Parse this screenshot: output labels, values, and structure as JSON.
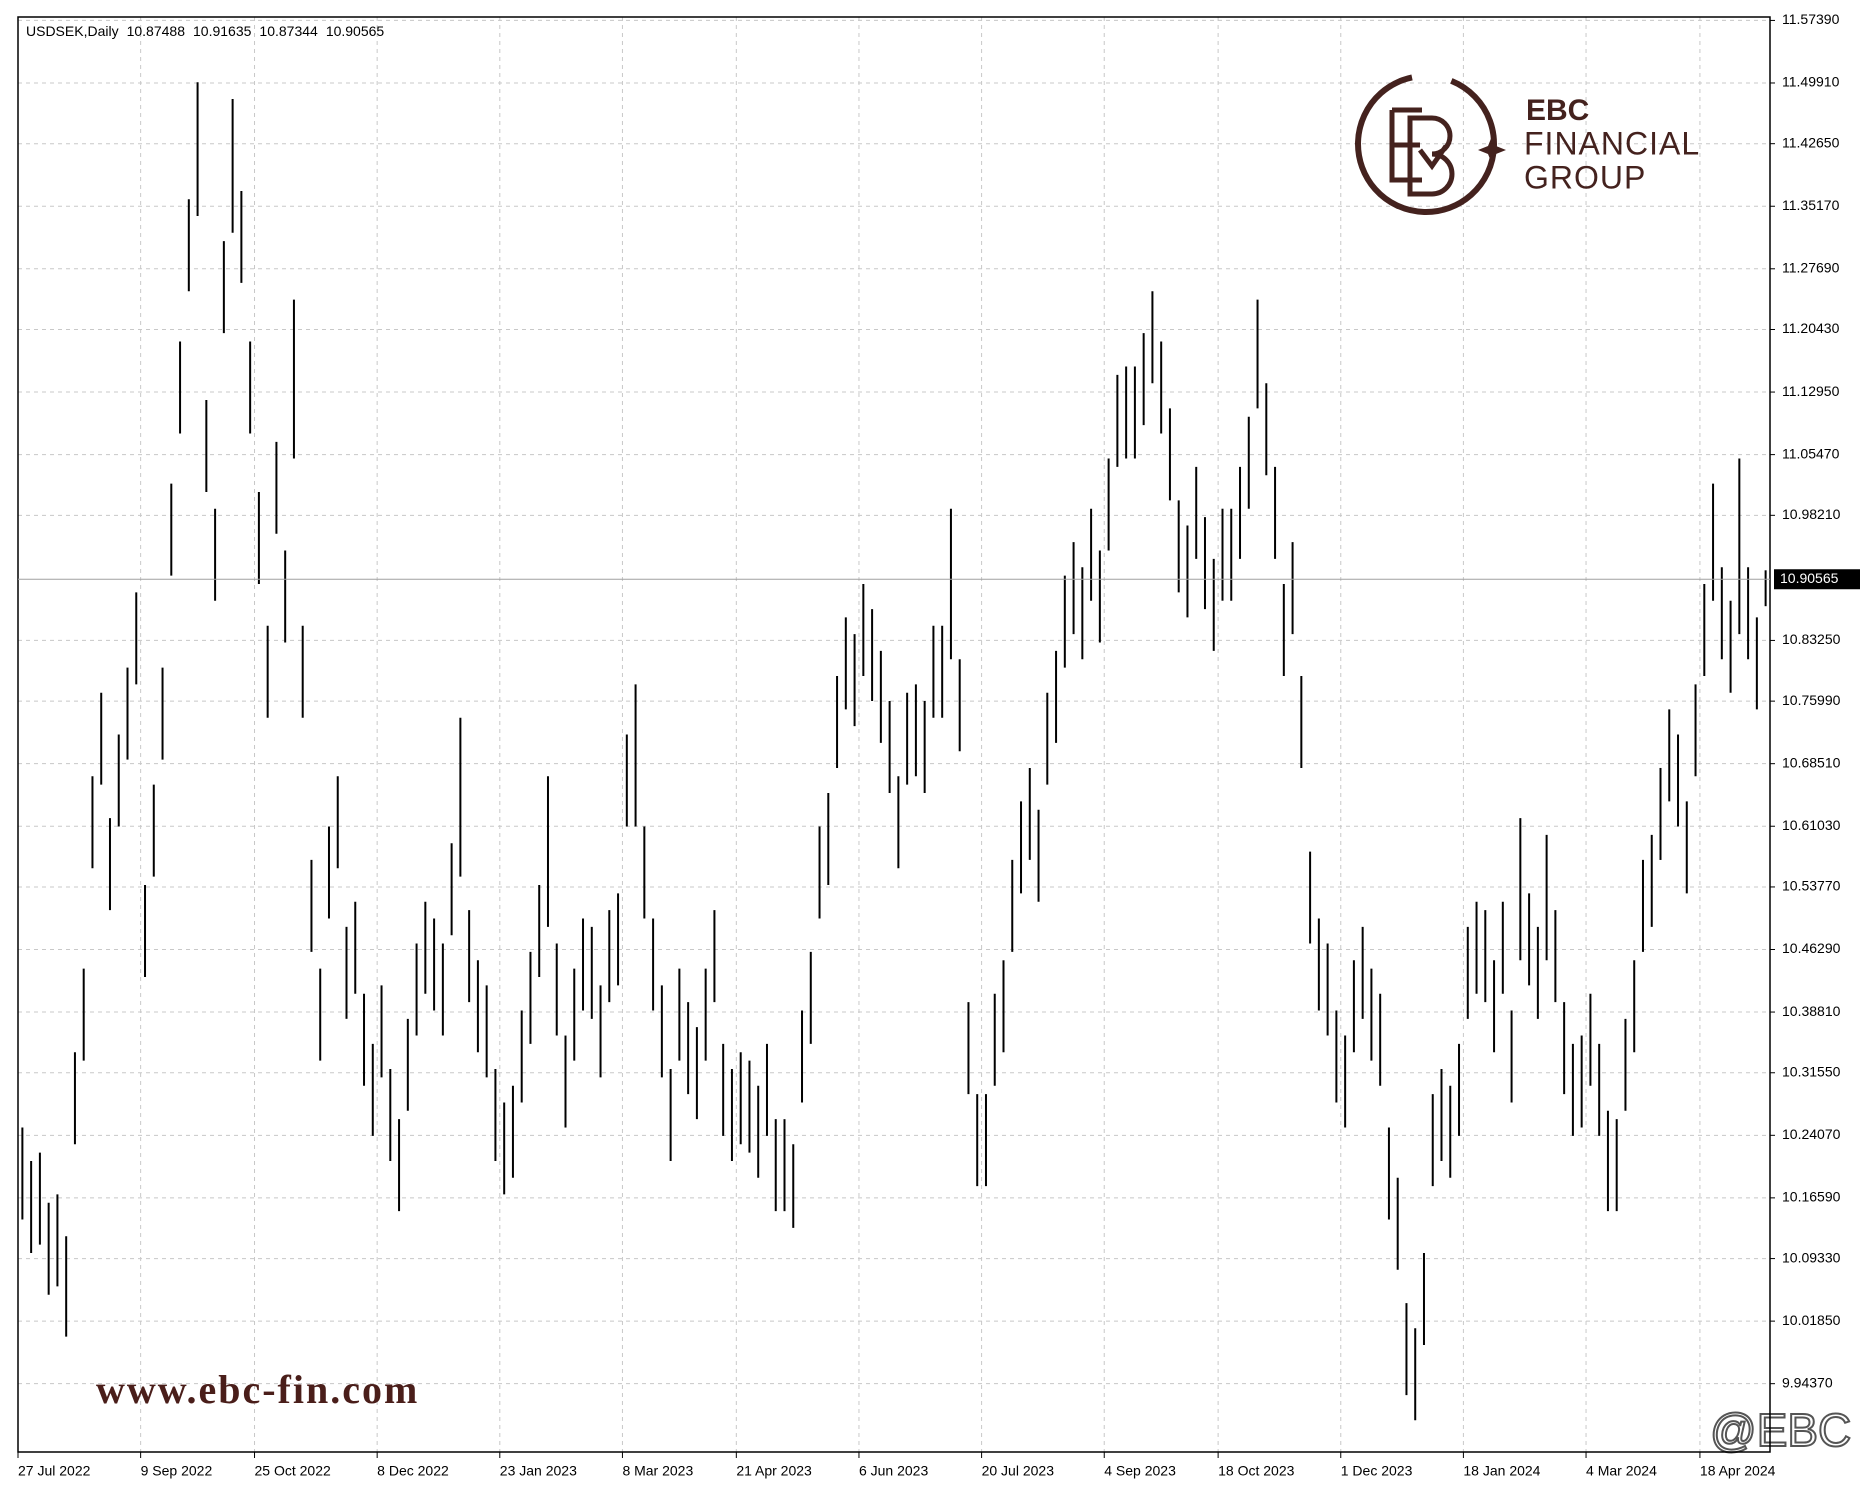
{
  "chart_data": {
    "type": "ohlc",
    "title": "USDSEK,Daily",
    "header_ohlc": [
      10.87488,
      10.91635,
      10.87344,
      10.90565
    ],
    "last_price": 10.90565,
    "color": "#000000",
    "grid": true,
    "ylim": [
      9.862,
      11.578
    ],
    "yticks": [
      {
        "value": 11.5739,
        "label": "11.57390"
      },
      {
        "value": 11.4991,
        "label": "11.49910"
      },
      {
        "value": 11.4265,
        "label": "11.42650"
      },
      {
        "value": 11.3517,
        "label": "11.35170"
      },
      {
        "value": 11.2769,
        "label": "11.27690"
      },
      {
        "value": 11.2043,
        "label": "11.20430"
      },
      {
        "value": 11.1295,
        "label": "11.12950"
      },
      {
        "value": 11.0547,
        "label": "11.05470"
      },
      {
        "value": 10.9821,
        "label": "10.98210"
      },
      {
        "value": 10.8325,
        "label": "10.83250"
      },
      {
        "value": 10.7599,
        "label": "10.75990"
      },
      {
        "value": 10.6851,
        "label": "10.68510"
      },
      {
        "value": 10.6103,
        "label": "10.61030"
      },
      {
        "value": 10.5377,
        "label": "10.53770"
      },
      {
        "value": 10.4629,
        "label": "10.46290"
      },
      {
        "value": 10.3881,
        "label": "10.38810"
      },
      {
        "value": 10.3155,
        "label": "10.31550"
      },
      {
        "value": 10.2407,
        "label": "10.24070"
      },
      {
        "value": 10.1659,
        "label": "10.16590"
      },
      {
        "value": 10.0933,
        "label": "10.09330"
      },
      {
        "value": 10.0185,
        "label": "10.01850"
      },
      {
        "value": 9.9437,
        "label": "9.94370"
      }
    ],
    "xlim": [
      0,
      200
    ],
    "xticks": [
      {
        "value": 0,
        "label": "27 Jul 2022"
      },
      {
        "value": 14,
        "label": "9 Sep 2022"
      },
      {
        "value": 27,
        "label": "25 Oct 2022"
      },
      {
        "value": 41,
        "label": "8 Dec 2022"
      },
      {
        "value": 55,
        "label": "23 Jan 2023"
      },
      {
        "value": 69,
        "label": "8 Mar 2023"
      },
      {
        "value": 82,
        "label": "21 Apr 2023"
      },
      {
        "value": 96,
        "label": "6 Jun 2023"
      },
      {
        "value": 110,
        "label": "20 Jul 2023"
      },
      {
        "value": 124,
        "label": "4 Sep 2023"
      },
      {
        "value": 137,
        "label": "18 Oct 2023"
      },
      {
        "value": 151,
        "label": "1 Dec 2023"
      },
      {
        "value": 165,
        "label": "18 Jan 2024"
      },
      {
        "value": 179,
        "label": "4 Mar 2024"
      },
      {
        "value": 192,
        "label": "18 Apr 2024"
      }
    ],
    "high": [
      10.25,
      10.21,
      10.22,
      10.16,
      10.17,
      10.12,
      10.34,
      10.44,
      10.67,
      10.77,
      10.62,
      10.72,
      10.8,
      10.89,
      10.54,
      10.66,
      10.8,
      11.02,
      11.19,
      11.36,
      11.5,
      11.12,
      10.99,
      11.31,
      11.48,
      11.37,
      11.19,
      11.01,
      10.85,
      11.07,
      10.94,
      11.24,
      10.85,
      10.57,
      10.44,
      10.61,
      10.67,
      10.49,
      10.52,
      10.41,
      10.35,
      10.42,
      10.32,
      10.26,
      10.38,
      10.47,
      10.52,
      10.5,
      10.47,
      10.59,
      10.74,
      10.51,
      10.45,
      10.42,
      10.32,
      10.28,
      10.3,
      10.39,
      10.46,
      10.54,
      10.67,
      10.47,
      10.36,
      10.44,
      10.5,
      10.49,
      10.42,
      10.51,
      10.53,
      10.72,
      10.78,
      10.61,
      10.5,
      10.42,
      10.32,
      10.44,
      10.4,
      10.37,
      10.44,
      10.51,
      10.35,
      10.32,
      10.34,
      10.33,
      10.3,
      10.35,
      10.26,
      10.26,
      10.23,
      10.39,
      10.46,
      10.61,
      10.65,
      10.79,
      10.86,
      10.84,
      10.9,
      10.87,
      10.82,
      10.76,
      10.67,
      10.77,
      10.78,
      10.76,
      10.85,
      10.85,
      10.99,
      10.81,
      10.4,
      10.29,
      10.29,
      10.41,
      10.45,
      10.57,
      10.64,
      10.68,
      10.63,
      10.77,
      10.82,
      10.91,
      10.95,
      10.92,
      10.99,
      10.94,
      11.05,
      11.15,
      11.16,
      11.16,
      11.2,
      11.25,
      11.19,
      11.11,
      11.0,
      10.97,
      11.04,
      10.98,
      10.93,
      10.99,
      10.99,
      11.04,
      11.1,
      11.24,
      11.14,
      11.04,
      10.9,
      10.95,
      10.79,
      10.58,
      10.5,
      10.47,
      10.39,
      10.36,
      10.45,
      10.49,
      10.44,
      10.41,
      10.25,
      10.19,
      10.04,
      10.01,
      10.1,
      10.29,
      10.32,
      10.3,
      10.35,
      10.49,
      10.52,
      10.51,
      10.45,
      10.52,
      10.39,
      10.62,
      10.53,
      10.49,
      10.6,
      10.51,
      10.4,
      10.35,
      10.36,
      10.41,
      10.35,
      10.27,
      10.26,
      10.38,
      10.45,
      10.57,
      10.6,
      10.68,
      10.75,
      10.72,
      10.64,
      10.78,
      10.9,
      11.02,
      10.92,
      10.88,
      11.05,
      10.92,
      10.86,
      10.91635
    ],
    "low": [
      10.14,
      10.1,
      10.11,
      10.05,
      10.06,
      10.0,
      10.23,
      10.33,
      10.56,
      10.66,
      10.51,
      10.61,
      10.69,
      10.78,
      10.43,
      10.55,
      10.69,
      10.91,
      11.08,
      11.25,
      11.34,
      11.01,
      10.88,
      11.2,
      11.32,
      11.26,
      11.08,
      10.9,
      10.74,
      10.96,
      10.83,
      11.05,
      10.74,
      10.46,
      10.33,
      10.5,
      10.56,
      10.38,
      10.41,
      10.3,
      10.24,
      10.31,
      10.21,
      10.15,
      10.27,
      10.36,
      10.41,
      10.39,
      10.36,
      10.48,
      10.55,
      10.4,
      10.34,
      10.31,
      10.21,
      10.17,
      10.19,
      10.28,
      10.35,
      10.43,
      10.49,
      10.36,
      10.25,
      10.33,
      10.39,
      10.38,
      10.31,
      10.4,
      10.42,
      10.61,
      10.61,
      10.5,
      10.39,
      10.31,
      10.21,
      10.33,
      10.29,
      10.26,
      10.33,
      10.4,
      10.24,
      10.21,
      10.23,
      10.22,
      10.19,
      10.24,
      10.15,
      10.15,
      10.13,
      10.28,
      10.35,
      10.5,
      10.54,
      10.68,
      10.75,
      10.73,
      10.79,
      10.76,
      10.71,
      10.65,
      10.56,
      10.66,
      10.67,
      10.65,
      10.74,
      10.74,
      10.81,
      10.7,
      10.29,
      10.18,
      10.18,
      10.3,
      10.34,
      10.46,
      10.53,
      10.57,
      10.52,
      10.66,
      10.71,
      10.8,
      10.84,
      10.81,
      10.88,
      10.83,
      10.94,
      11.04,
      11.05,
      11.05,
      11.09,
      11.14,
      11.08,
      11.0,
      10.89,
      10.86,
      10.93,
      10.87,
      10.82,
      10.88,
      10.88,
      10.93,
      10.99,
      11.11,
      11.03,
      10.93,
      10.79,
      10.84,
      10.68,
      10.47,
      10.39,
      10.36,
      10.28,
      10.25,
      10.34,
      10.38,
      10.33,
      10.3,
      10.14,
      10.08,
      9.93,
      9.9,
      9.99,
      10.18,
      10.21,
      10.19,
      10.24,
      10.38,
      10.41,
      10.4,
      10.34,
      10.41,
      10.28,
      10.45,
      10.42,
      10.38,
      10.45,
      10.4,
      10.29,
      10.24,
      10.25,
      10.3,
      10.24,
      10.15,
      10.15,
      10.27,
      10.34,
      10.46,
      10.49,
      10.57,
      10.64,
      10.61,
      10.53,
      10.67,
      10.79,
      10.88,
      10.81,
      10.77,
      10.84,
      10.81,
      10.75,
      10.87344
    ]
  },
  "watermark": {
    "brand": "EBC",
    "line1": "FINANCIAL",
    "line2": "GROUP",
    "url": "www.ebc-fin.com",
    "handle": "@EBC"
  }
}
